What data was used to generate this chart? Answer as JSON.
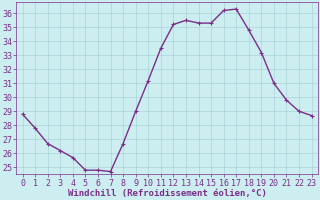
{
  "x": [
    0,
    1,
    2,
    3,
    4,
    5,
    6,
    7,
    8,
    9,
    10,
    11,
    12,
    13,
    14,
    15,
    16,
    17,
    18,
    19,
    20,
    21,
    22,
    23
  ],
  "y": [
    28.8,
    27.8,
    26.7,
    26.2,
    25.7,
    24.8,
    24.8,
    24.7,
    26.7,
    29.0,
    31.2,
    33.5,
    35.2,
    35.5,
    35.3,
    35.3,
    36.2,
    36.3,
    34.8,
    33.2,
    31.0,
    29.8,
    29.0,
    28.7
  ],
  "line_color": "#7b2d8b",
  "marker_color": "#7b2d8b",
  "bg_color": "#cceef0",
  "grid_color": "#aad4d8",
  "xlabel": "Windchill (Refroidissement éolien,°C)",
  "xlabel_color": "#7b2d8b",
  "tick_color": "#7b2d8b",
  "spine_color": "#7b2d8b",
  "ylim": [
    24.5,
    36.8
  ],
  "xlim": [
    -0.5,
    23.5
  ],
  "yticks": [
    25,
    26,
    27,
    28,
    29,
    30,
    31,
    32,
    33,
    34,
    35,
    36
  ],
  "xticks": [
    0,
    1,
    2,
    3,
    4,
    5,
    6,
    7,
    8,
    9,
    10,
    11,
    12,
    13,
    14,
    15,
    16,
    17,
    18,
    19,
    20,
    21,
    22,
    23
  ],
  "marker_size": 2.5,
  "line_width": 1.0,
  "font_size": 6,
  "label_font_size": 6.5
}
